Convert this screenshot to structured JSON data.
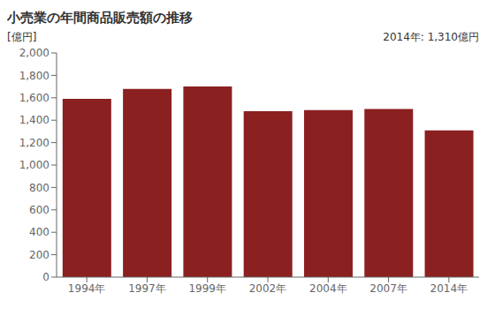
{
  "chart_data": {
    "type": "bar",
    "title": "小売業の年間商品販売額の推移",
    "ylabel": "[億円]",
    "annotation": "2014年: 1,310億円",
    "categories": [
      "1994年",
      "1997年",
      "1999年",
      "2002年",
      "2004年",
      "2007年",
      "2014年"
    ],
    "values": [
      1590,
      1680,
      1700,
      1480,
      1490,
      1500,
      1310
    ],
    "color": "#8B2020",
    "ylim": [
      0,
      2000
    ],
    "yticks": [
      0,
      200,
      400,
      600,
      800,
      {
        "value": 1000,
        "label": "1,000"
      },
      {
        "value": 1200,
        "label": "1,200"
      },
      {
        "value": 1400,
        "label": "1,400"
      },
      {
        "value": 1600,
        "label": "1,600"
      },
      {
        "value": 1800,
        "label": "1,800"
      },
      {
        "value": 2000,
        "label": "2,000"
      }
    ],
    "grid": false
  }
}
